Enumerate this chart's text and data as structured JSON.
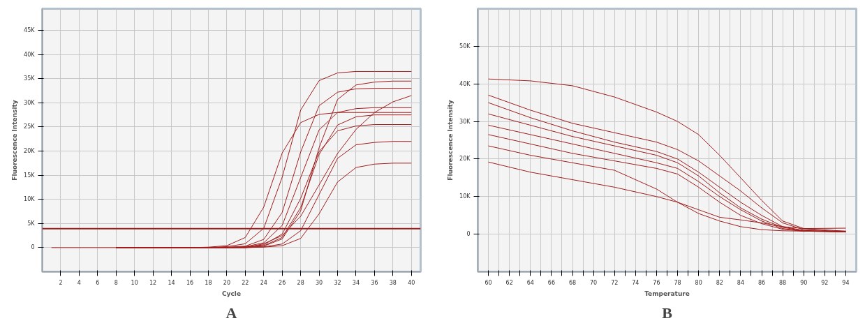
{
  "chart_data": [
    {
      "type": "line",
      "xlabel": "Cycle",
      "ylabel": "Fluorescence Intensity",
      "annotations": [
        "A"
      ],
      "grid": true,
      "xlim": [
        0,
        41
      ],
      "ylim": [
        -5000,
        49500
      ],
      "xticks": [
        2,
        4,
        6,
        8,
        10,
        12,
        14,
        16,
        18,
        20,
        22,
        24,
        26,
        28,
        30,
        32,
        34,
        36,
        38,
        40
      ],
      "yticks": [
        {
          "value": 0,
          "label": "0"
        },
        {
          "value": 5000,
          "label": "5K"
        },
        {
          "value": 10000,
          "label": "10K"
        },
        {
          "value": 15000,
          "label": "15K"
        },
        {
          "value": 20000,
          "label": "20K"
        },
        {
          "value": 25000,
          "label": "25K"
        },
        {
          "value": 30000,
          "label": "30K"
        },
        {
          "value": 35000,
          "label": "35K"
        },
        {
          "value": 40000,
          "label": "40K"
        },
        {
          "value": 45000,
          "label": "45K"
        }
      ],
      "ref_lines": [
        {
          "axis": "y",
          "value": 3917,
          "color": "#a01c1c"
        }
      ],
      "x": [
        8,
        16,
        18,
        20,
        22,
        24,
        26,
        28,
        30,
        32,
        34,
        36,
        38,
        40
      ],
      "series": [
        {
          "color": "#a01c1c",
          "x": [
            1,
            16,
            18,
            20,
            22,
            24,
            26,
            28,
            30,
            32,
            34,
            36,
            38,
            40
          ],
          "values": [
            0,
            0,
            100,
            400,
            2100,
            8400,
            19600,
            25900,
            27600,
            28000,
            28000,
            28000,
            28000,
            28000
          ]
        },
        {
          "color": "#a01c1c",
          "values": [
            0,
            0,
            0,
            200,
            800,
            4000,
            14600,
            28500,
            34600,
            36200,
            36500,
            36500,
            36500,
            36500
          ]
        },
        {
          "color": "#a01c1c",
          "values": [
            0,
            0,
            0,
            100,
            300,
            1700,
            7300,
            19800,
            29400,
            32200,
            32900,
            33000,
            33000,
            33000
          ]
        },
        {
          "color": "#a01c1c",
          "values": [
            0,
            0,
            0,
            0,
            200,
            1000,
            4600,
            14500,
            24400,
            28000,
            28800,
            29000,
            29000,
            29000
          ]
        },
        {
          "color": "#a01c1c",
          "values": [
            0,
            0,
            0,
            0,
            100,
            600,
            2800,
            10200,
            19900,
            24200,
            25200,
            25500,
            25500,
            25500
          ]
        },
        {
          "color": "#a01c1c",
          "values": [
            0,
            0,
            0,
            0,
            100,
            400,
            2100,
            8300,
            19300,
            25400,
            27100,
            27500,
            27500,
            27500
          ]
        },
        {
          "color": "#a01c1c",
          "values": [
            0,
            0,
            0,
            0,
            0,
            300,
            1800,
            7600,
            20700,
            30700,
            33700,
            34300,
            34500,
            34500
          ]
        },
        {
          "color": "#a01c1c",
          "values": [
            0,
            0,
            0,
            0,
            0,
            150,
            750,
            3500,
            11000,
            18500,
            21300,
            21800,
            22000,
            22000
          ]
        },
        {
          "color": "#a01c1c",
          "values": [
            0,
            0,
            0,
            0,
            0,
            100,
            400,
            1900,
            7000,
            13600,
            16600,
            17300,
            17500,
            17500
          ]
        },
        {
          "color": "#a01c1c",
          "values": [
            0,
            0,
            0,
            0,
            0,
            800,
            2500,
            6500,
            13000,
            19500,
            24500,
            28000,
            30200,
            31500
          ]
        }
      ]
    },
    {
      "type": "line",
      "xlabel": "Temperature",
      "ylabel": "Fluorescence Intensity",
      "annotations": [
        "B"
      ],
      "grid": true,
      "xlim": [
        59,
        95
      ],
      "ylim": [
        -10000,
        60000
      ],
      "xticks": [
        60,
        {
          "value": 61,
          "label": null
        },
        62,
        {
          "value": 63,
          "label": null
        },
        64,
        {
          "value": 65,
          "label": null
        },
        66,
        {
          "value": 67,
          "label": null
        },
        68,
        {
          "value": 69,
          "label": null
        },
        70,
        {
          "value": 71,
          "label": null
        },
        72,
        {
          "value": 73,
          "label": null
        },
        74,
        {
          "value": 75,
          "label": null
        },
        76,
        {
          "value": 77,
          "label": null
        },
        78,
        {
          "value": 79,
          "label": null
        },
        80,
        {
          "value": 81,
          "label": null
        },
        82,
        {
          "value": 83,
          "label": null
        },
        84,
        {
          "value": 85,
          "label": null
        },
        86,
        {
          "value": 87,
          "label": null
        },
        88,
        {
          "value": 89,
          "label": null
        },
        90,
        {
          "value": 91,
          "label": null
        },
        92,
        {
          "value": 93,
          "label": null
        },
        94
      ],
      "yticks": [
        {
          "value": 0,
          "label": "0"
        },
        {
          "value": 10000,
          "label": "10K"
        },
        {
          "value": 20000,
          "label": "20K"
        },
        {
          "value": 30000,
          "label": "30K"
        },
        {
          "value": 40000,
          "label": "40K"
        },
        {
          "value": 50000,
          "label": "50K"
        }
      ],
      "x": [
        60,
        64,
        68,
        72,
        76,
        78,
        80,
        82,
        84,
        86,
        88,
        90,
        94
      ],
      "series": [
        {
          "color": "#a01c1c",
          "values": [
            41300,
            40800,
            39500,
            36500,
            32500,
            30000,
            26500,
            21000,
            15000,
            9000,
            3500,
            1500,
            800
          ]
        },
        {
          "color": "#a01c1c",
          "values": [
            37000,
            33000,
            29500,
            27000,
            24500,
            22500,
            19500,
            15500,
            11500,
            7000,
            3000,
            1200,
            700
          ]
        },
        {
          "color": "#a01c1c",
          "values": [
            35000,
            31000,
            27500,
            24500,
            22000,
            20000,
            16500,
            12500,
            8500,
            5000,
            2000,
            1000,
            600
          ]
        },
        {
          "color": "#a01c1c",
          "values": [
            32000,
            29000,
            26000,
            23500,
            21000,
            19000,
            15500,
            11000,
            7000,
            4000,
            1800,
            900,
            600
          ]
        },
        {
          "color": "#a01c1c",
          "values": [
            29000,
            26500,
            24000,
            21500,
            19000,
            17500,
            14000,
            10000,
            6500,
            3500,
            1500,
            800,
            600
          ]
        },
        {
          "color": "#a01c1c",
          "values": [
            26500,
            24000,
            21500,
            19500,
            17500,
            16000,
            12500,
            8500,
            5000,
            2800,
            1300,
            800,
            600
          ]
        },
        {
          "color": "#a01c1c",
          "values": [
            23500,
            21000,
            19000,
            17000,
            12000,
            8500,
            5500,
            3500,
            2000,
            1200,
            900,
            800,
            800
          ]
        },
        {
          "color": "#a01c1c",
          "values": [
            19200,
            16500,
            14500,
            12500,
            10000,
            8500,
            6500,
            4500,
            3800,
            3000,
            2000,
            1500,
            1600
          ]
        }
      ]
    }
  ]
}
